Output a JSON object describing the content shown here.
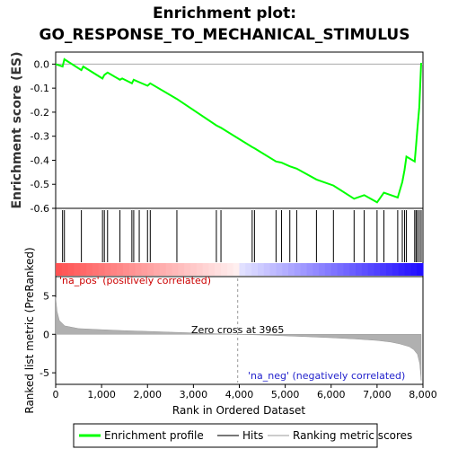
{
  "chart_data": {
    "type": "line",
    "title_line1": "Enrichment plot:",
    "title_line2": "GO_RESPONSE_TO_MECHANICAL_STIMULUS",
    "es_panel": {
      "ylabel": "Enrichment score (ES)",
      "ylim": [
        -0.6,
        0.05
      ],
      "yticks": [
        "0.0",
        "-0.1",
        "-0.2",
        "-0.3",
        "-0.4",
        "-0.5",
        "-0.6"
      ],
      "ytick_values": [
        0.0,
        -0.1,
        -0.2,
        -0.3,
        -0.4,
        -0.5,
        -0.6
      ],
      "series_name": "Enrichment profile",
      "color": "#00ff00",
      "x": [
        0,
        150,
        190,
        560,
        600,
        1020,
        1060,
        1130,
        1400,
        1450,
        1660,
        1700,
        1820,
        2000,
        2060,
        2640,
        3500,
        3600,
        4280,
        4330,
        4800,
        4920,
        5100,
        5250,
        5680,
        6050,
        6500,
        6720,
        7000,
        7150,
        7450,
        7550,
        7600,
        7640,
        7820,
        7850,
        7880,
        7920,
        7960
      ],
      "y": [
        0.0,
        -0.01,
        0.02,
        -0.025,
        -0.01,
        -0.06,
        -0.045,
        -0.035,
        -0.065,
        -0.06,
        -0.08,
        -0.065,
        -0.075,
        -0.09,
        -0.08,
        -0.145,
        -0.255,
        -0.265,
        -0.345,
        -0.35,
        -0.405,
        -0.41,
        -0.425,
        -0.435,
        -0.48,
        -0.505,
        -0.56,
        -0.545,
        -0.575,
        -0.535,
        -0.555,
        -0.49,
        -0.44,
        -0.385,
        -0.405,
        -0.34,
        -0.265,
        -0.18,
        0.005
      ]
    },
    "hits": [
      150,
      190,
      560,
      1020,
      1060,
      1130,
      1400,
      1660,
      1700,
      1820,
      2000,
      2060,
      2640,
      3500,
      3600,
      4280,
      4330,
      4800,
      4920,
      5100,
      5250,
      5680,
      6050,
      6500,
      6720,
      7000,
      7150,
      7450,
      7550,
      7600,
      7640,
      7820,
      7850,
      7880,
      7920,
      7960
    ],
    "metric_panel": {
      "ylabel": "Ranked list metric (PreRanked)",
      "ylim": [
        -6.5,
        7.5
      ],
      "yticks": [
        "5",
        "0",
        "-5"
      ],
      "ytick_values": [
        5,
        0,
        -5
      ],
      "zero_cross_label": "Zero cross at 3965",
      "zero_cross": 3965,
      "pos_label": "'na_pos' (positively correlated)",
      "neg_label": "'na_neg' (negatively correlated)",
      "metric_x": [
        0,
        30,
        80,
        200,
        500,
        1000,
        1500,
        2000,
        2500,
        3000,
        3500,
        3965,
        4500,
        5000,
        5500,
        6000,
        6500,
        7000,
        7300,
        7500,
        7700,
        7800,
        7880,
        7930,
        7960
      ],
      "metric_y": [
        4.8,
        3.0,
        1.8,
        1.1,
        0.75,
        0.6,
        0.48,
        0.38,
        0.28,
        0.18,
        0.08,
        0.0,
        -0.1,
        -0.2,
        -0.32,
        -0.45,
        -0.6,
        -0.8,
        -1.0,
        -1.25,
        -1.6,
        -2.0,
        -2.6,
        -3.8,
        -6.0
      ]
    },
    "xlabel": "Rank in Ordered Dataset",
    "xlim": [
      0,
      8000
    ],
    "xticks": [
      "0",
      "1,000",
      "2,000",
      "3,000",
      "4,000",
      "5,000",
      "6,000",
      "7,000",
      "8,000"
    ],
    "xtick_values": [
      0,
      1000,
      2000,
      3000,
      4000,
      5000,
      6000,
      7000,
      8000
    ],
    "legend": [
      {
        "label": "Enrichment profile",
        "color": "#00ff00"
      },
      {
        "label": "Hits",
        "color": "#777777"
      },
      {
        "label": "Ranking metric scores",
        "color": "#cccccc"
      }
    ]
  }
}
